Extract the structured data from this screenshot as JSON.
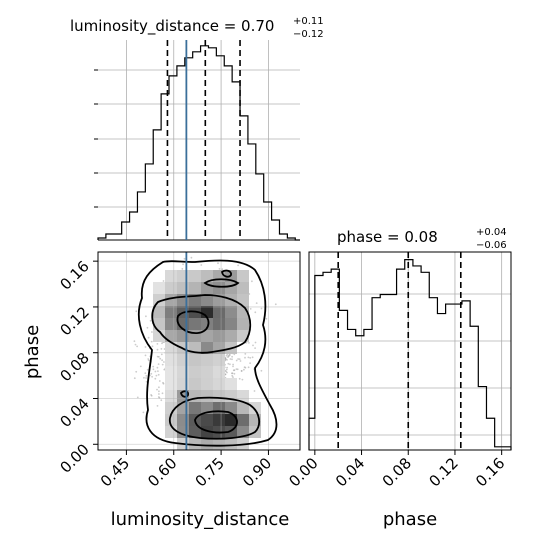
{
  "chart_data": {
    "type": "corner",
    "parameters": [
      "luminosity_distance",
      "phase"
    ],
    "truth": {
      "luminosity_distance": 0.64
    },
    "panels": {
      "luminosity_distance_hist": {
        "type": "histogram",
        "title_main": "luminosity_distance = 0.70",
        "title_sup": "+0.11",
        "title_sub": "−0.12",
        "x_range": [
          0.36,
          1.0
        ],
        "bin_edges": [
          0.36,
          0.385,
          0.41,
          0.435,
          0.46,
          0.485,
          0.51,
          0.535,
          0.56,
          0.585,
          0.61,
          0.635,
          0.66,
          0.685,
          0.71,
          0.735,
          0.76,
          0.785,
          0.81,
          0.835,
          0.86,
          0.885,
          0.91,
          0.935,
          0.96,
          0.985,
          1.0
        ],
        "counts": [
          1,
          3,
          3,
          9,
          14,
          24,
          38,
          55,
          73,
          82,
          87,
          91,
          94,
          97,
          96,
          92,
          87,
          79,
          62,
          48,
          33,
          19,
          10,
          3,
          1,
          0
        ],
        "quantiles": [
          0.58,
          0.7,
          0.81
        ]
      },
      "phase_hist": {
        "type": "histogram",
        "title_main": "phase = 0.08",
        "title_sup": "+0.04",
        "title_sub": "−0.06",
        "x_range": [
          -0.005,
          0.168
        ],
        "bin_edges": [
          -0.005,
          0.0,
          0.007,
          0.014,
          0.021,
          0.028,
          0.035,
          0.042,
          0.049,
          0.056,
          0.063,
          0.07,
          0.077,
          0.084,
          0.091,
          0.098,
          0.105,
          0.112,
          0.119,
          0.126,
          0.133,
          0.14,
          0.147,
          0.154,
          0.161,
          0.168
        ],
        "counts": [
          10,
          55,
          56,
          57,
          44,
          38,
          36,
          38,
          48,
          49,
          49,
          57,
          60,
          58,
          56,
          48,
          43,
          46,
          46,
          47,
          39,
          20,
          10,
          1,
          1
        ],
        "quantiles": [
          0.02,
          0.08,
          0.125
        ]
      },
      "joint": {
        "type": "2d-histogram-contour",
        "x_range": [
          0.36,
          1.0
        ],
        "y_range": [
          -0.005,
          0.168
        ]
      }
    },
    "x_axis_labels": [
      "luminosity_distance",
      "phase"
    ],
    "y_axis_label": "phase",
    "lumdist_ticks": [
      "0.45",
      "0.60",
      "0.75",
      "0.90"
    ],
    "lumdist_tick_values": [
      0.45,
      0.6,
      0.75,
      0.9
    ],
    "phase_ticks": [
      "0.00",
      "0.04",
      "0.08",
      "0.12",
      "0.16"
    ],
    "phase_tick_values": [
      0.0,
      0.04,
      0.08,
      0.12,
      0.16
    ]
  }
}
